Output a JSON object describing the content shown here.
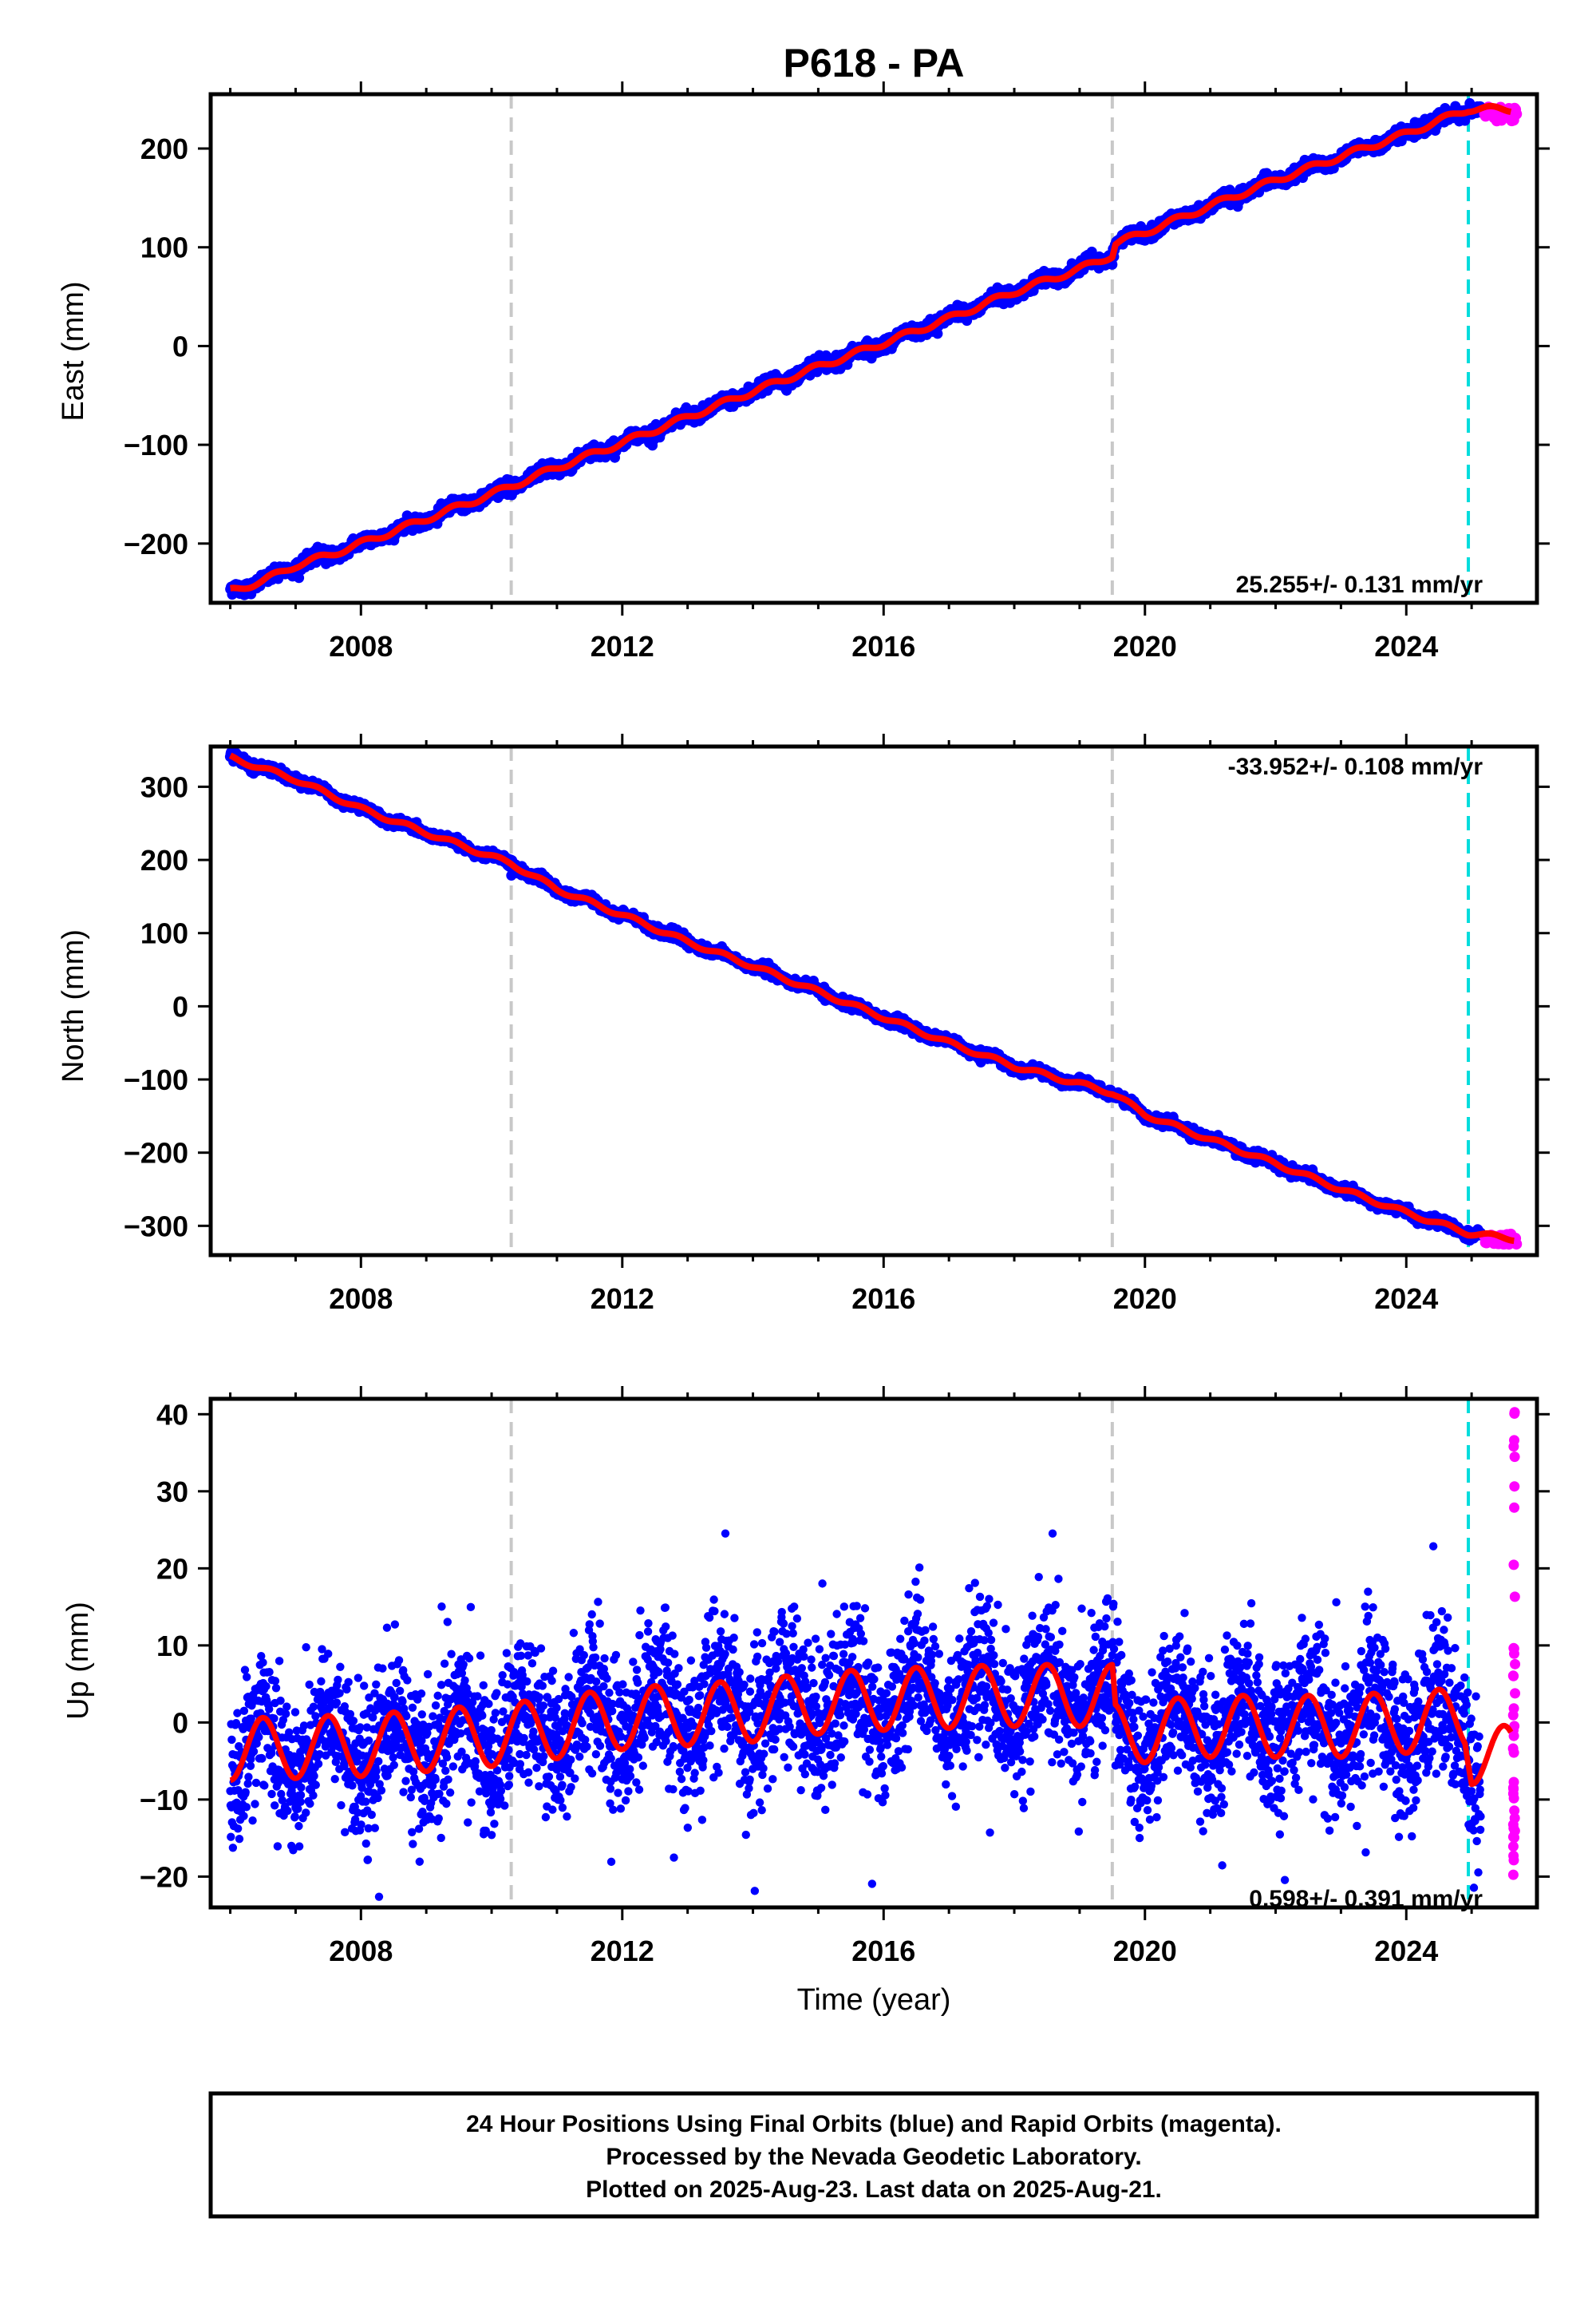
{
  "title": "P618 - PA",
  "colors": {
    "final": "#0000ff",
    "rapid": "#ff00ff",
    "model": "#ff0000",
    "break": "#c8c8c8",
    "rapid_start": "#00dcdc"
  },
  "chart_data": [
    {
      "type": "scatter",
      "ylabel": "East (mm)",
      "xlabel": "",
      "xlim": [
        2005.7,
        2026.0
      ],
      "ylim": [
        -260,
        255
      ],
      "xticks": [
        2008,
        2012,
        2016,
        2020,
        2024
      ],
      "yticks": [
        -200,
        -100,
        0,
        100,
        200
      ],
      "rate_text": "25.255+/- 0.131 mm/yr",
      "rate_position": "bottom-right",
      "vlines_gray": [
        2010.3,
        2019.5
      ],
      "vline_cyan": 2024.95,
      "series": [
        {
          "values_x": [
            2006.0,
            2006.5,
            2007.0,
            2007.5,
            2008.0,
            2009.0,
            2010.0,
            2011.0,
            2012.0,
            2013.0,
            2014.0,
            2015.0,
            2016.0,
            2017.0,
            2018.0,
            2019.0,
            2019.5,
            2019.55,
            2020.0,
            2021.0,
            2022.0,
            2023.0,
            2024.0,
            2024.95,
            2025.6
          ],
          "values_y": [
            -248,
            -238,
            -222,
            -212,
            -200,
            -175,
            -150,
            -123,
            -98,
            -72,
            -46,
            -21,
            3,
            28,
            55,
            78,
            92,
            104,
            115,
            142,
            168,
            192,
            215,
            240,
            240
          ]
        }
      ],
      "rapid": {
        "x": [
          2025.2,
          2025.7
        ],
        "y_range": [
          228,
          242
        ]
      }
    },
    {
      "type": "scatter",
      "ylabel": "North (mm)",
      "xlabel": "",
      "xlim": [
        2005.7,
        2026.0
      ],
      "ylim": [
        -340,
        355
      ],
      "xticks": [
        2008,
        2012,
        2016,
        2020,
        2024
      ],
      "yticks": [
        -300,
        -200,
        -100,
        0,
        100,
        200,
        300
      ],
      "rate_text": "-33.952+/- 0.108 mm/yr",
      "rate_position": "top-right",
      "vlines_gray": [
        2010.3,
        2019.5
      ],
      "vline_cyan": 2024.95,
      "series": [
        {
          "values_x": [
            2006.0,
            2007.0,
            2008.0,
            2009.0,
            2010.3,
            2011.0,
            2012.0,
            2013.0,
            2014.0,
            2015.0,
            2016.0,
            2017.0,
            2018.0,
            2019.5,
            2020.0,
            2021.0,
            2022.0,
            2023.0,
            2024.0,
            2024.95,
            2025.7
          ],
          "values_y": [
            340,
            310,
            270,
            237,
            195,
            160,
            125,
            88,
            55,
            20,
            -15,
            -50,
            -82,
            -118,
            -148,
            -182,
            -215,
            -250,
            -282,
            -310,
            -318
          ]
        }
      ],
      "rapid": {
        "x": [
          2025.2,
          2025.7
        ],
        "y_range": [
          -325,
          -310
        ]
      }
    },
    {
      "type": "scatter",
      "ylabel": "Up (mm)",
      "xlabel": "Time (year)",
      "xlim": [
        2005.7,
        2026.0
      ],
      "ylim": [
        -24,
        42
      ],
      "xticks": [
        2008,
        2012,
        2016,
        2020,
        2024
      ],
      "yticks": [
        -20,
        -10,
        0,
        10,
        20,
        30,
        40
      ],
      "rate_text": "0.598+/- 0.391 mm/yr",
      "rate_position": "bottom-right",
      "vlines_gray": [
        2010.3,
        2019.5
      ],
      "vline_cyan": 2024.95,
      "seasonal_amplitude": 4.0,
      "series": [
        {
          "values_x": [
            2006.0,
            2008.0,
            2010.3,
            2012.0,
            2014.0,
            2015.0,
            2016.0,
            2018.0,
            2019.5,
            2019.55,
            2021.0,
            2023.0,
            2024.9,
            2025.0,
            2025.6
          ],
          "values_y": [
            -3.5,
            -3.0,
            -1.5,
            0.5,
            1.5,
            2.5,
            3.0,
            3.5,
            3.5,
            -1.5,
            -0.5,
            -0.5,
            0.5,
            -4.0,
            -4.5
          ]
        }
      ],
      "rapid": {
        "x": [
          2025.2,
          2025.7
        ],
        "y_range": [
          -22,
          41
        ]
      }
    }
  ],
  "footer": {
    "line1": "24 Hour Positions Using Final Orbits (blue) and Rapid Orbits (magenta).",
    "line2": "Processed by the Nevada Geodetic Laboratory.",
    "line3": "Plotted on 2025-Aug-23. Last data on 2025-Aug-21."
  }
}
